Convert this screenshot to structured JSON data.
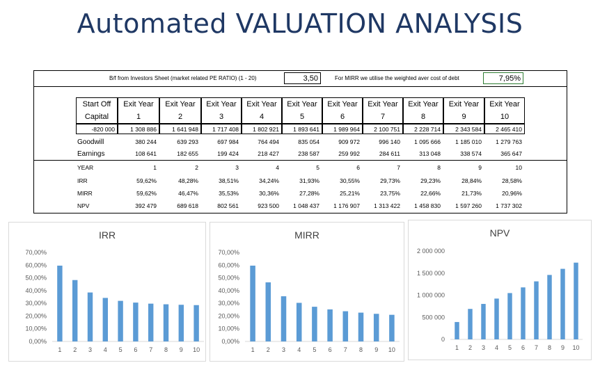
{
  "title": "Automated VALUATION ANALYSIS",
  "inputs": {
    "pe_label": "B/f from Investors Sheet (market related PE RATIO) (1 - 20)",
    "pe_value": "3,50",
    "mirr_label": "For MIRR we utilise the weighted aver cost of debt",
    "mirr_value": "7,95%"
  },
  "table": {
    "header_first": [
      "Start Off",
      "Capital"
    ],
    "exit_label": "Exit Year",
    "years": [
      "1",
      "2",
      "3",
      "4",
      "5",
      "6",
      "7",
      "8",
      "9",
      "10"
    ],
    "capital_row": [
      "-820 000",
      "1 308 886",
      "1 641 948",
      "1 717 408",
      "1 802 921",
      "1 893 641",
      "1 989 964",
      "2 100 751",
      "2 228 714",
      "2 343 584",
      "2 465 410"
    ],
    "goodwill": {
      "label": "Goodwill",
      "values": [
        "380 244",
        "639 293",
        "697 984",
        "764 494",
        "835 054",
        "909 972",
        "996 140",
        "1 095 666",
        "1 185 010",
        "1 279 763"
      ]
    },
    "earnings": {
      "label": "Earnings",
      "values": [
        "108 641",
        "182 655",
        "199 424",
        "218 427",
        "238 587",
        "259 992",
        "284 611",
        "313 048",
        "338 574",
        "365 647"
      ]
    },
    "year_row": {
      "label": "YEAR",
      "values": [
        "1",
        "2",
        "3",
        "4",
        "5",
        "6",
        "7",
        "8",
        "9",
        "10"
      ]
    },
    "irr": {
      "label": "IRR",
      "values": [
        "59,62%",
        "48,28%",
        "38,51%",
        "34,24%",
        "31,93%",
        "30,55%",
        "29,73%",
        "29,23%",
        "28,84%",
        "28,58%"
      ]
    },
    "mirr": {
      "label": "MIRR",
      "values": [
        "59,62%",
        "46,47%",
        "35,53%",
        "30,36%",
        "27,28%",
        "25,21%",
        "23,75%",
        "22,66%",
        "21,73%",
        "20,96%"
      ]
    },
    "npv": {
      "label": "NPV",
      "values": [
        "392 479",
        "689 618",
        "802 561",
        "923 500",
        "1 048 437",
        "1 176 907",
        "1 313 422",
        "1 458 830",
        "1 597 260",
        "1 737 302"
      ]
    }
  },
  "colors": {
    "title": "#1f3864",
    "bar": "#5b9bd5",
    "axis_text": "#595959"
  },
  "chart_data": [
    {
      "type": "bar",
      "title": "IRR",
      "categories": [
        "1",
        "2",
        "3",
        "4",
        "5",
        "6",
        "7",
        "8",
        "9",
        "10"
      ],
      "values": [
        59.62,
        48.28,
        38.51,
        34.24,
        31.93,
        30.55,
        29.73,
        29.23,
        28.84,
        28.58
      ],
      "ylim": [
        0,
        70
      ],
      "yticks": [
        "0,00%",
        "10,00%",
        "20,00%",
        "30,00%",
        "40,00%",
        "50,00%",
        "60,00%",
        "70,00%"
      ],
      "grid": false
    },
    {
      "type": "bar",
      "title": "MIRR",
      "categories": [
        "1",
        "2",
        "3",
        "4",
        "5",
        "6",
        "7",
        "8",
        "9",
        "10"
      ],
      "values": [
        59.62,
        46.47,
        35.53,
        30.36,
        27.28,
        25.21,
        23.75,
        22.66,
        21.73,
        20.96
      ],
      "ylim": [
        0,
        70
      ],
      "yticks": [
        "0,00%",
        "10,00%",
        "20,00%",
        "30,00%",
        "40,00%",
        "50,00%",
        "60,00%",
        "70,00%"
      ],
      "grid": false
    },
    {
      "type": "bar",
      "title": "NPV",
      "categories": [
        "1",
        "2",
        "3",
        "4",
        "5",
        "6",
        "7",
        "8",
        "9",
        "10"
      ],
      "values": [
        392479,
        689618,
        802561,
        923500,
        1048437,
        1176907,
        1313422,
        1458830,
        1597260,
        1737302
      ],
      "ylim": [
        0,
        2000000
      ],
      "yticks": [
        "0",
        "500 000",
        "1 000 000",
        "1 500 000",
        "2 000 000"
      ],
      "grid": false
    }
  ]
}
